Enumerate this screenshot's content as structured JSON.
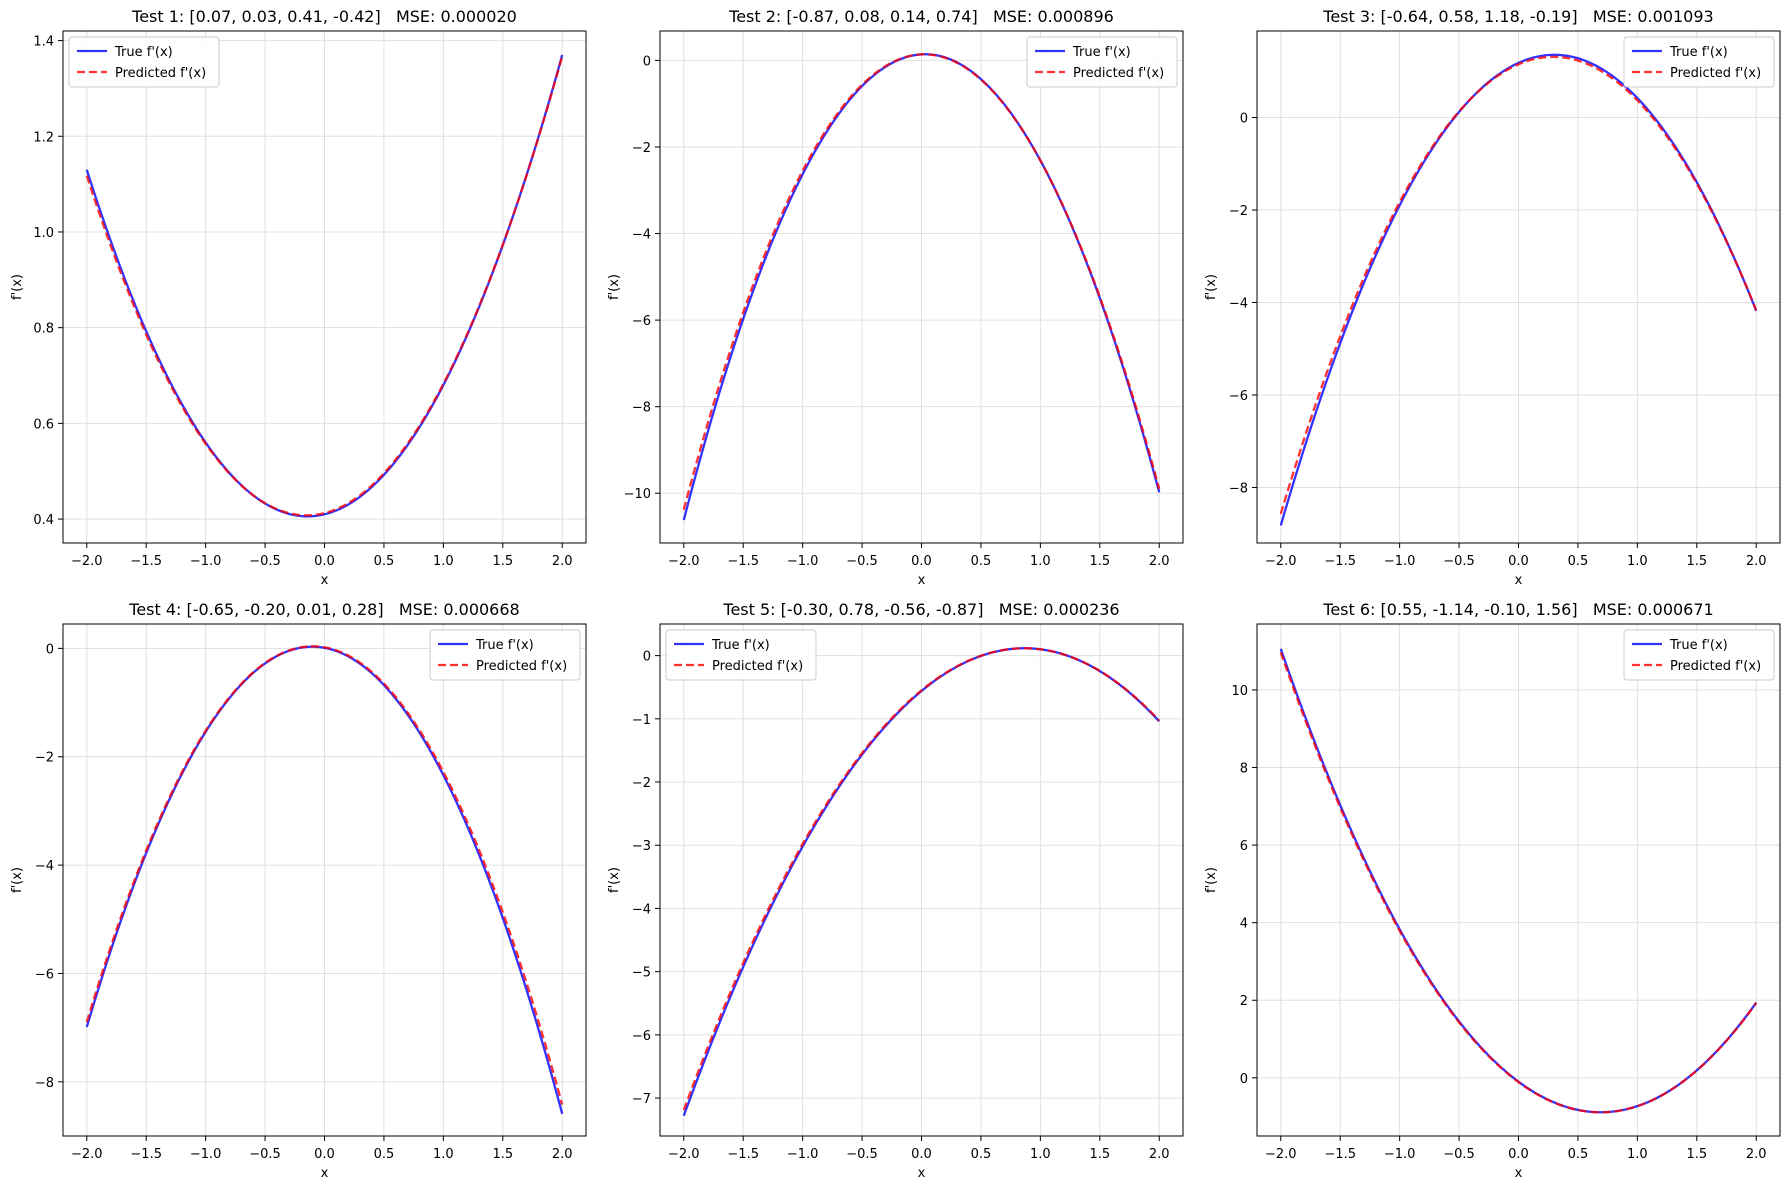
{
  "colors": {
    "true_line": "#0000ff",
    "pred_line": "#ff0000",
    "grid": "#e0e0e0"
  },
  "chart_data": [
    {
      "type": "line",
      "title": "Test 1: [0.07, 0.03, 0.41, -0.42]   MSE: 0.000020",
      "xlabel": "x",
      "ylabel": "f'(x)",
      "xlim": [
        -2.2,
        2.2
      ],
      "ylim": [
        0.35,
        1.42
      ],
      "xticks": [
        -2.0,
        -1.5,
        -1.0,
        -0.5,
        0.0,
        0.5,
        1.0,
        1.5,
        2.0
      ],
      "yticks": [
        0.4,
        0.6,
        0.8,
        1.0,
        1.2,
        1.4
      ],
      "ytick_decimals": 1,
      "legend": "top-left",
      "grid": true,
      "x_range": [
        -2,
        2
      ],
      "series": [
        {
          "name": "True f'(x)",
          "coeffs": [
            0.21,
            0.06,
            0.41
          ]
        },
        {
          "name": "Predicted f'(x)",
          "coeffs": [
            0.2075,
            0.0625,
            0.4125
          ]
        }
      ]
    },
    {
      "type": "line",
      "title": "Test 2: [-0.87, 0.08, 0.14, 0.74]   MSE: 0.000896",
      "xlabel": "x",
      "ylabel": "f'(x)",
      "xlim": [
        -2.2,
        2.2
      ],
      "ylim": [
        -11.15,
        0.68
      ],
      "xticks": [
        -2.0,
        -1.5,
        -1.0,
        -0.5,
        0.0,
        0.5,
        1.0,
        1.5,
        2.0
      ],
      "yticks": [
        -10,
        -8,
        -6,
        -4,
        -2,
        0
      ],
      "ytick_decimals": 0,
      "legend": "top-right",
      "grid": true,
      "x_range": [
        -2,
        2
      ],
      "series": [
        {
          "name": "True f'(x)",
          "coeffs": [
            -2.61,
            0.16,
            0.14
          ]
        },
        {
          "name": "Predicted f'(x)",
          "coeffs": [
            -2.57,
            0.12,
            0.14
          ]
        }
      ]
    },
    {
      "type": "line",
      "title": "Test 3: [-0.64, 0.58, 1.18, -0.19]   MSE: 0.001093",
      "xlabel": "x",
      "ylabel": "f'(x)",
      "xlim": [
        -2.2,
        2.2
      ],
      "ylim": [
        -9.2,
        1.87
      ],
      "xticks": [
        -2.0,
        -1.5,
        -1.0,
        -0.5,
        0.0,
        0.5,
        1.0,
        1.5,
        2.0
      ],
      "yticks": [
        -8,
        -6,
        -4,
        -2,
        0
      ],
      "ytick_decimals": 0,
      "legend": "top-right",
      "grid": true,
      "x_range": [
        -2,
        2
      ],
      "series": [
        {
          "name": "True f'(x)",
          "coeffs": [
            -1.92,
            1.16,
            1.18
          ]
        },
        {
          "name": "Predicted f'(x)",
          "coeffs": [
            -1.88,
            1.1,
            1.15
          ]
        }
      ]
    },
    {
      "type": "line",
      "title": "Test 4: [-0.65, -0.20, 0.01, 0.28]   MSE: 0.000668",
      "xlabel": "x",
      "ylabel": "f'(x)",
      "xlim": [
        -2.2,
        2.2
      ],
      "ylim": [
        -9.0,
        0.45
      ],
      "xticks": [
        -2.0,
        -1.5,
        -1.0,
        -0.5,
        0.0,
        0.5,
        1.0,
        1.5,
        2.0
      ],
      "yticks": [
        -8,
        -6,
        -4,
        -2,
        0
      ],
      "ytick_decimals": 0,
      "legend": "top-right",
      "grid": true,
      "x_range": [
        -2,
        2
      ],
      "series": [
        {
          "name": "True f'(x)",
          "coeffs": [
            -1.95,
            -0.4,
            0.01
          ]
        },
        {
          "name": "Predicted f'(x)",
          "coeffs": [
            -1.92,
            -0.38,
            0.02
          ]
        }
      ]
    },
    {
      "type": "line",
      "title": "Test 5: [-0.30, 0.78, -0.56, -0.87]   MSE: 0.000236",
      "xlabel": "x",
      "ylabel": "f'(x)",
      "xlim": [
        -2.2,
        2.2
      ],
      "ylim": [
        -7.6,
        0.5
      ],
      "xticks": [
        -2.0,
        -1.5,
        -1.0,
        -0.5,
        0.0,
        0.5,
        1.0,
        1.5,
        2.0
      ],
      "yticks": [
        -7,
        -6,
        -5,
        -4,
        -3,
        -2,
        -1,
        0
      ],
      "ytick_decimals": 0,
      "legend": "top-left",
      "grid": true,
      "x_range": [
        -2,
        2
      ],
      "series": [
        {
          "name": "True f'(x)",
          "coeffs": [
            -0.9,
            1.56,
            -0.56
          ]
        },
        {
          "name": "Predicted f'(x)",
          "coeffs": [
            -0.89,
            1.54,
            -0.55
          ]
        }
      ]
    },
    {
      "type": "line",
      "title": "Test 6: [0.55, -1.14, -0.10, 1.56]   MSE: 0.000671",
      "xlabel": "x",
      "ylabel": "f'(x)",
      "xlim": [
        -2.2,
        2.2
      ],
      "ylim": [
        -1.5,
        11.7
      ],
      "xticks": [
        -2.0,
        -1.5,
        -1.0,
        -0.5,
        0.0,
        0.5,
        1.0,
        1.5,
        2.0
      ],
      "yticks": [
        0,
        2,
        4,
        6,
        8,
        10
      ],
      "ytick_decimals": 0,
      "legend": "top-right",
      "grid": true,
      "x_range": [
        -2,
        2
      ],
      "series": [
        {
          "name": "True f'(x)",
          "coeffs": [
            1.65,
            -2.28,
            -0.1
          ]
        },
        {
          "name": "Predicted f'(x)",
          "coeffs": [
            1.64,
            -2.26,
            -0.11
          ]
        }
      ]
    }
  ]
}
